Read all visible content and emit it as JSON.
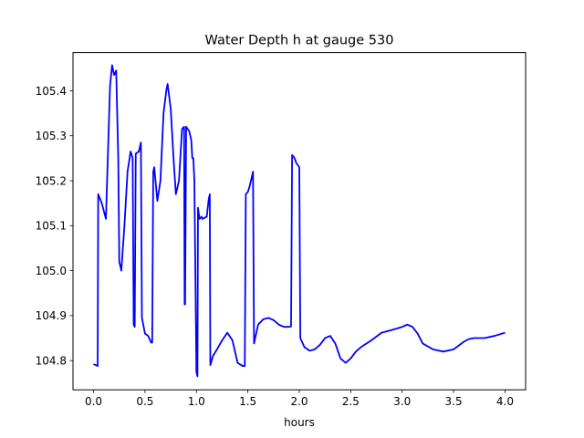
{
  "chart_data": {
    "type": "line",
    "title": "Water Depth h at gauge 530",
    "xlabel": "hours",
    "ylabel": "",
    "xlim": [
      -0.2,
      4.2
    ],
    "ylim": [
      104.735,
      105.485
    ],
    "xticks": [
      0.0,
      0.5,
      1.0,
      1.5,
      2.0,
      2.5,
      3.0,
      3.5,
      4.0
    ],
    "xtick_labels": [
      "0.0",
      "0.5",
      "1.0",
      "1.5",
      "2.0",
      "2.5",
      "3.0",
      "3.5",
      "4.0"
    ],
    "yticks": [
      104.8,
      104.9,
      105.0,
      105.1,
      105.2,
      105.3,
      105.4
    ],
    "ytick_labels": [
      "104.8",
      "104.9",
      "105.0",
      "105.1",
      "105.2",
      "105.3",
      "105.4"
    ],
    "grid": false,
    "series": [
      {
        "color": "#0000ff",
        "x": [
          0.0,
          0.04,
          0.045,
          0.08,
          0.12,
          0.16,
          0.18,
          0.2,
          0.22,
          0.24,
          0.25,
          0.27,
          0.3,
          0.33,
          0.36,
          0.38,
          0.39,
          0.4,
          0.41,
          0.44,
          0.46,
          0.47,
          0.5,
          0.53,
          0.56,
          0.57,
          0.58,
          0.59,
          0.62,
          0.65,
          0.68,
          0.71,
          0.72,
          0.75,
          0.78,
          0.8,
          0.83,
          0.86,
          0.88,
          0.885,
          0.89,
          0.9,
          0.93,
          0.95,
          0.96,
          0.97,
          0.98,
          1.0,
          1.01,
          1.015,
          1.03,
          1.05,
          1.06,
          1.1,
          1.12,
          1.13,
          1.135,
          1.16,
          1.2,
          1.25,
          1.3,
          1.35,
          1.4,
          1.45,
          1.47,
          1.48,
          1.5,
          1.52,
          1.54,
          1.55,
          1.56,
          1.6,
          1.65,
          1.7,
          1.75,
          1.8,
          1.85,
          1.9,
          1.92,
          1.93,
          1.95,
          1.97,
          2.0,
          2.01,
          2.02,
          2.05,
          2.1,
          2.15,
          2.2,
          2.25,
          2.3,
          2.35,
          2.4,
          2.45,
          2.5,
          2.55,
          2.6,
          2.7,
          2.8,
          2.9,
          3.0,
          3.05,
          3.1,
          3.15,
          3.2,
          3.3,
          3.4,
          3.5,
          3.6,
          3.65,
          3.7,
          3.8,
          3.9,
          4.0
        ],
        "y": [
          104.792,
          104.788,
          105.17,
          105.15,
          105.115,
          105.41,
          105.457,
          105.435,
          105.445,
          105.25,
          105.02,
          105.0,
          105.1,
          105.22,
          105.265,
          105.25,
          104.88,
          104.875,
          105.26,
          105.265,
          105.285,
          104.895,
          104.86,
          104.855,
          104.84,
          104.84,
          105.22,
          105.23,
          105.155,
          105.2,
          105.35,
          105.405,
          105.415,
          105.36,
          105.24,
          105.17,
          105.2,
          105.315,
          105.32,
          104.925,
          104.925,
          105.32,
          105.31,
          105.29,
          105.25,
          105.25,
          105.2,
          104.775,
          104.765,
          105.14,
          105.115,
          105.12,
          105.115,
          105.12,
          105.16,
          105.17,
          104.79,
          104.81,
          104.825,
          104.845,
          104.862,
          104.845,
          104.795,
          104.788,
          104.788,
          105.17,
          105.175,
          105.19,
          105.21,
          105.22,
          104.838,
          104.88,
          104.892,
          104.895,
          104.89,
          104.88,
          104.875,
          104.875,
          104.876,
          105.257,
          105.252,
          105.24,
          105.23,
          104.85,
          104.845,
          104.83,
          104.822,
          104.825,
          104.835,
          104.85,
          104.855,
          104.838,
          104.805,
          104.795,
          104.805,
          104.82,
          104.83,
          104.845,
          104.862,
          104.868,
          104.875,
          104.88,
          104.875,
          104.86,
          104.838,
          104.825,
          104.82,
          104.825,
          104.842,
          104.848,
          104.85,
          104.85,
          104.855,
          104.862
        ]
      }
    ]
  }
}
